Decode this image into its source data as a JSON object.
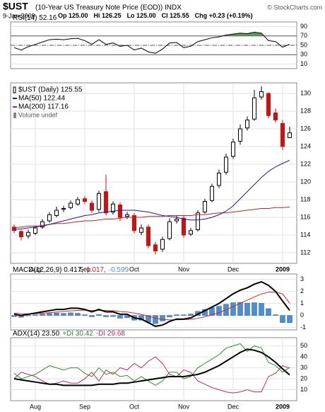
{
  "header": {
    "title": "$UST",
    "subtitle": "(10-Year US Treasury Note Price (EOD)) INDX",
    "credit": "© StockCharts.com",
    "date": "9-Jan-2009",
    "quote": [
      "Op 125.00",
      "Hi 126.25",
      "Lo 125.00",
      "Cl 125.55",
      "Chg +0.23 (+0.19%)"
    ]
  },
  "chart_data": [
    {
      "type": "line",
      "ylim": [
        0,
        100
      ],
      "yticks": [
        90,
        70,
        50,
        30,
        10
      ],
      "reference_lines": [
        70,
        50,
        30
      ],
      "overbought_fill": "#5e9a5e",
      "series": [
        {
          "name": "RSI(14) 52.16",
          "color": "#000000",
          "values": [
            45,
            40,
            47,
            52,
            57,
            62,
            63,
            62,
            64,
            65,
            60,
            52,
            62,
            52,
            55,
            48,
            50,
            40,
            44,
            36,
            33,
            42,
            55,
            56,
            45,
            48,
            58,
            62,
            66,
            68,
            72,
            74,
            76,
            75,
            78,
            76,
            60,
            58,
            46,
            52.16
          ]
        }
      ]
    },
    {
      "type": "candlestick",
      "name": "$UST (Daily) 125.55",
      "volume_label": "Volume undef",
      "up_color": "#000000",
      "down_color": "#cc1111",
      "ylim": [
        110.8,
        131.2
      ],
      "yticks": [
        112,
        114,
        116,
        118,
        120,
        122,
        124,
        126,
        128,
        130
      ],
      "categories": [
        null,
        null,
        null,
        "Aug",
        null,
        null,
        null,
        null,
        null,
        null,
        "Sep",
        null,
        null,
        null,
        null,
        null,
        null,
        "Oct",
        null,
        null,
        null,
        null,
        null,
        null,
        "Nov",
        null,
        null,
        null,
        null,
        null,
        null,
        "Dec",
        null,
        null,
        null,
        null,
        null,
        null,
        "2009",
        null
      ],
      "open": [
        114.9,
        114.4,
        113.9,
        114.2,
        114.9,
        115.6,
        116.2,
        116.9,
        117.1,
        117.5,
        118.1,
        117.6,
        116.9,
        118.9,
        116.6,
        117.4,
        116.1,
        116.2,
        114.3,
        114.9,
        112.9,
        112.4,
        113.6,
        115.6,
        115.9,
        114.1,
        114.6,
        116.6,
        117.9,
        119.6,
        121.1,
        122.9,
        124.6,
        126.1,
        127.1,
        129.6,
        130.0,
        127.8,
        126.6,
        125.0
      ],
      "high": [
        115.2,
        114.6,
        114.6,
        115.1,
        115.8,
        116.6,
        117.2,
        117.3,
        117.9,
        118.3,
        118.4,
        117.9,
        119.0,
        120.8,
        117.8,
        117.7,
        116.6,
        116.5,
        115.2,
        115.2,
        113.2,
        113.8,
        115.9,
        116.2,
        116.2,
        114.8,
        116.8,
        118.1,
        119.8,
        121.4,
        123.2,
        124.9,
        126.5,
        127.4,
        130.4,
        130.8,
        130.1,
        128.3,
        127.0,
        126.25
      ],
      "low": [
        114.2,
        113.4,
        113.6,
        114.0,
        114.7,
        115.4,
        116.0,
        116.6,
        116.9,
        117.3,
        117.5,
        116.5,
        116.6,
        116.2,
        116.3,
        115.6,
        115.8,
        114.2,
        114.0,
        112.5,
        111.8,
        112.1,
        113.4,
        115.3,
        113.7,
        113.9,
        114.4,
        116.4,
        117.7,
        119.3,
        120.8,
        122.6,
        124.2,
        125.8,
        126.9,
        129.3,
        127.2,
        126.7,
        123.6,
        125.0
      ],
      "close": [
        114.5,
        113.8,
        114.3,
        114.8,
        115.5,
        116.3,
        116.8,
        117.0,
        117.6,
        118.0,
        117.8,
        116.8,
        118.7,
        116.5,
        117.5,
        116.0,
        116.3,
        114.5,
        114.8,
        112.8,
        112.2,
        113.5,
        115.5,
        115.8,
        114.0,
        114.5,
        116.5,
        117.8,
        119.5,
        121.0,
        122.8,
        124.5,
        126.0,
        127.0,
        129.5,
        130.2,
        127.5,
        127.0,
        124.0,
        125.55
      ],
      "series": [
        {
          "name": "MA(50) 122.44",
          "color": "#1c1c9c",
          "values": [
            114.6,
            114.7,
            114.8,
            114.9,
            115.0,
            115.2,
            115.4,
            115.6,
            115.8,
            116.0,
            116.2,
            116.3,
            116.5,
            116.6,
            116.7,
            116.8,
            116.8,
            116.8,
            116.7,
            116.6,
            116.4,
            116.2,
            116.1,
            116.0,
            115.8,
            115.7,
            115.7,
            115.8,
            116.0,
            116.3,
            116.7,
            117.3,
            118.1,
            118.9,
            119.7,
            120.5,
            121.2,
            121.7,
            122.1,
            122.44
          ]
        },
        {
          "name": "MA(200) 117.16",
          "color": "#cc2222",
          "values": [
            114.8,
            114.9,
            115.0,
            115.0,
            115.1,
            115.2,
            115.3,
            115.3,
            115.4,
            115.5,
            115.6,
            115.6,
            115.7,
            115.8,
            115.8,
            115.9,
            116.0,
            116.0,
            116.0,
            116.1,
            116.1,
            116.1,
            116.2,
            116.2,
            116.2,
            116.2,
            116.3,
            116.3,
            116.4,
            116.5,
            116.5,
            116.6,
            116.7,
            116.8,
            116.9,
            117.0,
            117.0,
            117.1,
            117.1,
            117.16
          ]
        }
      ]
    },
    {
      "type": "line",
      "ylim": [
        -1.2,
        3.45
      ],
      "yticks": [
        3,
        2,
        1,
        0,
        -1
      ],
      "series": [
        {
          "name": "MACD(12,26,9) 0.417,",
          "color": "#000000",
          "width": 2,
          "values": [
            0.1,
            0.0,
            0.1,
            0.2,
            0.3,
            0.4,
            0.5,
            0.5,
            0.6,
            0.6,
            0.5,
            0.3,
            0.5,
            0.3,
            0.3,
            0.1,
            0.1,
            -0.2,
            -0.3,
            -0.6,
            -0.9,
            -0.8,
            -0.5,
            -0.3,
            -0.3,
            -0.2,
            0.1,
            0.4,
            0.7,
            1.0,
            1.4,
            1.8,
            2.1,
            2.3,
            2.6,
            2.8,
            2.5,
            2.0,
            1.2,
            0.417
          ]
        },
        {
          "name": "1.017,",
          "color": "#dd2222",
          "width": 1,
          "values": [
            0.2,
            0.15,
            0.13,
            0.15,
            0.18,
            0.23,
            0.29,
            0.33,
            0.38,
            0.42,
            0.44,
            0.41,
            0.43,
            0.41,
            0.39,
            0.33,
            0.29,
            0.19,
            0.09,
            -0.05,
            -0.22,
            -0.34,
            -0.37,
            -0.36,
            -0.35,
            -0.32,
            -0.24,
            -0.11,
            0.05,
            0.24,
            0.47,
            0.74,
            1.01,
            1.27,
            1.54,
            1.79,
            1.93,
            1.94,
            1.79,
            1.017
          ]
        },
        {
          "name": "-0.599",
          "color": "#4a8fd0",
          "style": "bar",
          "values": [
            -0.1,
            -0.15,
            -0.03,
            0.05,
            0.12,
            0.17,
            0.21,
            0.17,
            0.22,
            0.18,
            0.06,
            -0.11,
            0.07,
            -0.11,
            -0.09,
            -0.23,
            -0.19,
            -0.39,
            -0.39,
            -0.55,
            -0.68,
            -0.46,
            -0.13,
            0.06,
            0.05,
            0.12,
            0.34,
            0.51,
            0.65,
            0.76,
            0.93,
            1.06,
            1.09,
            1.03,
            1.06,
            1.01,
            0.57,
            0.06,
            -0.59,
            -0.599
          ]
        }
      ]
    },
    {
      "type": "line",
      "ylim": [
        0,
        57.5
      ],
      "yticks": [
        50,
        40,
        30,
        20,
        10
      ],
      "categories": [
        null,
        null,
        null,
        "Aug",
        null,
        null,
        null,
        null,
        null,
        null,
        "Sep",
        null,
        null,
        null,
        null,
        null,
        null,
        "Oct",
        null,
        null,
        null,
        null,
        null,
        null,
        "Nov",
        null,
        null,
        null,
        null,
        null,
        null,
        "Dec",
        null,
        null,
        null,
        null,
        null,
        null,
        "2009",
        null
      ],
      "series": [
        {
          "name": "ADX(14) 23.50",
          "color": "#000000",
          "width": 2,
          "values": [
            20,
            19,
            18,
            17,
            16,
            15,
            15,
            14,
            14,
            14,
            14,
            14,
            15,
            15,
            15,
            16,
            16,
            17,
            18,
            19,
            20,
            21,
            22,
            22,
            22,
            23,
            24,
            26,
            29,
            32,
            36,
            40,
            44,
            47,
            46,
            44,
            40,
            35,
            29,
            23.5
          ]
        },
        {
          "name": "+DI 30.42",
          "color": "#2e8b2e",
          "width": 1,
          "values": [
            25,
            20,
            22,
            24,
            28,
            32,
            30,
            28,
            30,
            30,
            25,
            22,
            30,
            24,
            26,
            22,
            23,
            18,
            22,
            18,
            14,
            18,
            26,
            26,
            20,
            22,
            30,
            34,
            38,
            42,
            48,
            50,
            52,
            45,
            50,
            48,
            35,
            32,
            26,
            30.42
          ]
        },
        {
          "name": "-DI 29.68",
          "color": "#b0305a",
          "width": 1,
          "values": [
            20,
            26,
            24,
            22,
            18,
            15,
            16,
            18,
            16,
            16,
            20,
            26,
            18,
            28,
            24,
            30,
            28,
            34,
            30,
            36,
            40,
            34,
            24,
            22,
            28,
            26,
            18,
            15,
            12,
            10,
            8,
            7,
            8,
            10,
            8,
            8,
            22,
            25,
            32,
            29.68
          ]
        }
      ]
    }
  ]
}
